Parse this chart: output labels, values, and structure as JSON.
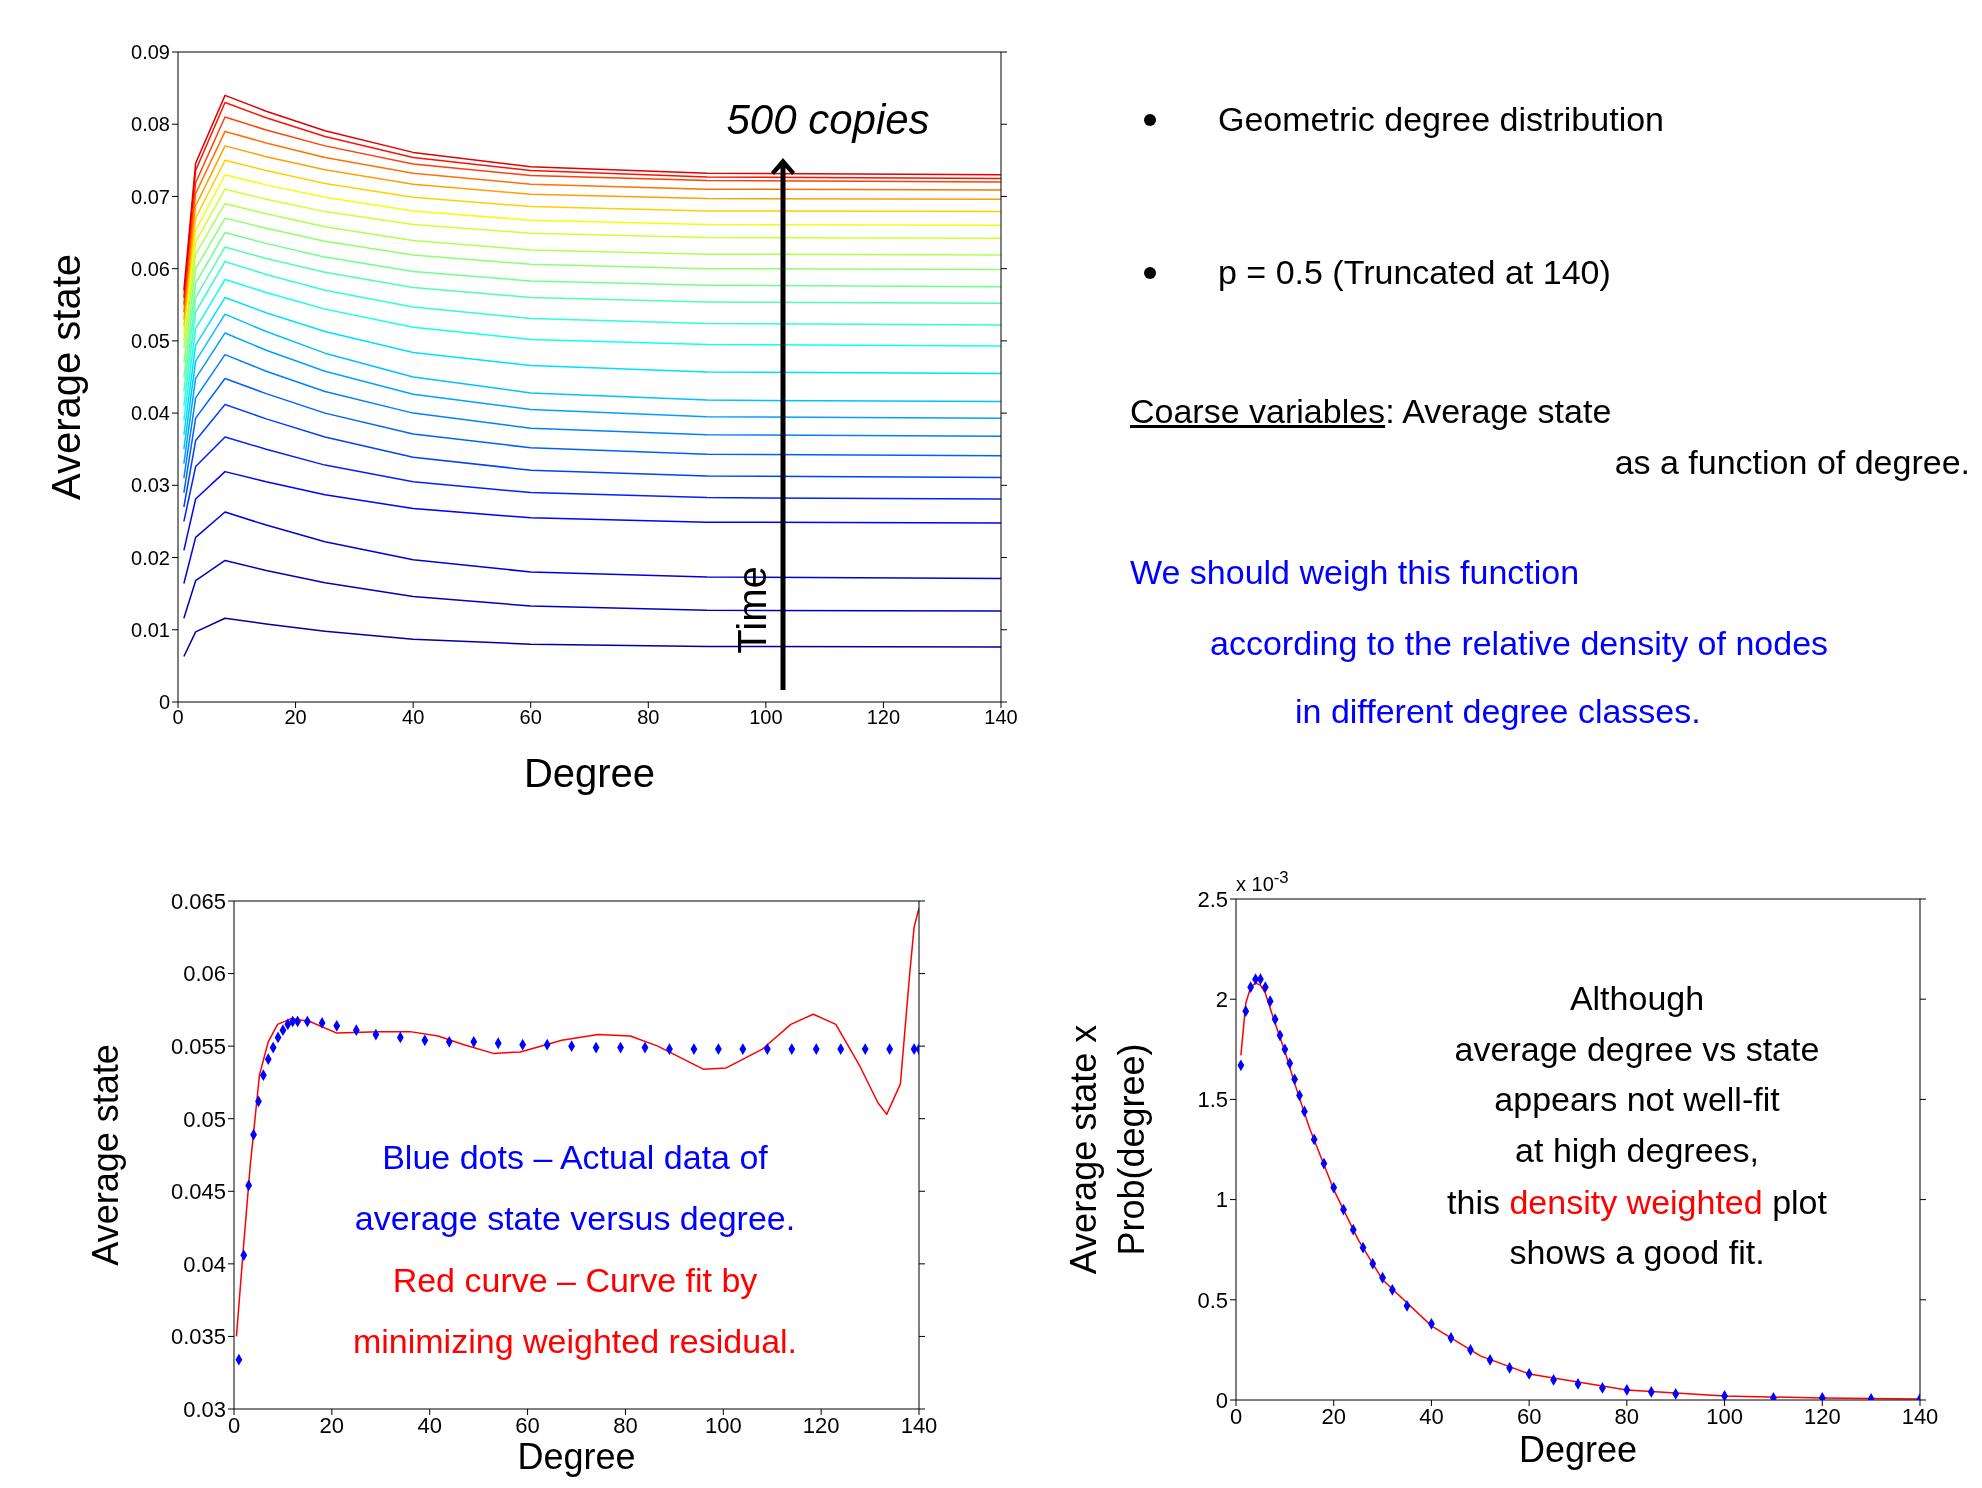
{
  "chart_data": [
    {
      "type": "line",
      "xlabel": "Degree",
      "ylabel": "Average state",
      "xlim": [
        0,
        140
      ],
      "xticks": [
        0,
        20,
        40,
        60,
        80,
        100,
        120,
        140
      ],
      "ylim": [
        0,
        0.09
      ],
      "yticks": [
        0,
        0.01,
        0.02,
        0.03,
        0.04,
        0.05,
        0.06,
        0.07,
        0.08,
        0.09
      ],
      "annotations": [
        "500 copies",
        "Time"
      ],
      "x": [
        1,
        3,
        8,
        15,
        25,
        40,
        60,
        90,
        140
      ],
      "series": [
        {
          "color": "#00009f",
          "values": [
            0.0063,
            0.0097,
            0.0116,
            0.0108,
            0.0098,
            0.0087,
            0.008,
            0.0077,
            0.0076
          ]
        },
        {
          "color": "#0000bf",
          "values": [
            0.0116,
            0.0168,
            0.0196,
            0.0182,
            0.0165,
            0.0146,
            0.0133,
            0.0127,
            0.0126
          ]
        },
        {
          "color": "#0000df",
          "values": [
            0.0164,
            0.0228,
            0.0263,
            0.0245,
            0.0222,
            0.0197,
            0.018,
            0.0173,
            0.0171
          ]
        },
        {
          "color": "#0000ff",
          "values": [
            0.021,
            0.0281,
            0.0319,
            0.0305,
            0.0287,
            0.0268,
            0.0255,
            0.0249,
            0.0248
          ]
        },
        {
          "color": "#0020ff",
          "values": [
            0.025,
            0.0326,
            0.0367,
            0.035,
            0.0328,
            0.0305,
            0.029,
            0.0283,
            0.0281
          ]
        },
        {
          "color": "#0040ff",
          "values": [
            0.027,
            0.0362,
            0.0412,
            0.0392,
            0.0367,
            0.0339,
            0.0321,
            0.0313,
            0.0311
          ]
        },
        {
          "color": "#0060ff",
          "values": [
            0.029,
            0.0393,
            0.0448,
            0.0427,
            0.04,
            0.0371,
            0.0352,
            0.0343,
            0.0341
          ]
        },
        {
          "color": "#0080ff",
          "values": [
            0.031,
            0.0421,
            0.0481,
            0.0458,
            0.043,
            0.04,
            0.0379,
            0.037,
            0.0368
          ]
        },
        {
          "color": "#00a0ff",
          "values": [
            0.033,
            0.0448,
            0.0511,
            0.0487,
            0.0458,
            0.0426,
            0.0405,
            0.0395,
            0.0393
          ]
        },
        {
          "color": "#00c0ff",
          "values": [
            0.035,
            0.0472,
            0.0537,
            0.0513,
            0.0483,
            0.045,
            0.0428,
            0.0418,
            0.0416
          ]
        },
        {
          "color": "#00e0ff",
          "values": [
            0.037,
            0.0494,
            0.056,
            0.0539,
            0.0513,
            0.0484,
            0.0466,
            0.0457,
            0.0455
          ]
        },
        {
          "color": "#10ffef",
          "values": [
            0.039,
            0.0517,
            0.0585,
            0.0567,
            0.0544,
            0.0519,
            0.0502,
            0.0495,
            0.0493
          ]
        },
        {
          "color": "#30ffcf",
          "values": [
            0.041,
            0.054,
            0.061,
            0.0592,
            0.057,
            0.0547,
            0.0531,
            0.0524,
            0.0522
          ]
        },
        {
          "color": "#50ffaf",
          "values": [
            0.043,
            0.056,
            0.063,
            0.0614,
            0.0595,
            0.0574,
            0.056,
            0.0554,
            0.0552
          ]
        },
        {
          "color": "#70ff8f",
          "values": [
            0.045,
            0.058,
            0.065,
            0.0635,
            0.0616,
            0.0596,
            0.0583,
            0.0577,
            0.0575
          ]
        },
        {
          "color": "#90ff6f",
          "values": [
            0.047,
            0.06,
            0.067,
            0.0656,
            0.0638,
            0.0619,
            0.0606,
            0.06,
            0.0599
          ]
        },
        {
          "color": "#b0ff4f",
          "values": [
            0.049,
            0.062,
            0.069,
            0.0676,
            0.0658,
            0.0639,
            0.0626,
            0.062,
            0.0619
          ]
        },
        {
          "color": "#d0ff2f",
          "values": [
            0.05,
            0.0637,
            0.071,
            0.0696,
            0.0679,
            0.0661,
            0.0649,
            0.0643,
            0.0642
          ]
        },
        {
          "color": "#f0ff0f",
          "values": [
            0.051,
            0.0653,
            0.073,
            0.0716,
            0.0699,
            0.068,
            0.0667,
            0.0661,
            0.066
          ]
        },
        {
          "color": "#ffd000",
          "values": [
            0.052,
            0.067,
            0.075,
            0.0736,
            0.0718,
            0.0699,
            0.0686,
            0.068,
            0.0679
          ]
        },
        {
          "color": "#ffa000",
          "values": [
            0.053,
            0.0687,
            0.077,
            0.0755,
            0.0737,
            0.0717,
            0.0703,
            0.0697,
            0.0696
          ]
        },
        {
          "color": "#ff7000",
          "values": [
            0.054,
            0.0704,
            0.079,
            0.0774,
            0.0754,
            0.0732,
            0.0717,
            0.071,
            0.0709
          ]
        },
        {
          "color": "#ff4000",
          "values": [
            0.055,
            0.0719,
            0.081,
            0.0792,
            0.077,
            0.0745,
            0.0729,
            0.0722,
            0.072
          ]
        },
        {
          "color": "#ff1000",
          "values": [
            0.056,
            0.0736,
            0.083,
            0.0809,
            0.0783,
            0.0754,
            0.0736,
            0.0727,
            0.0725
          ]
        },
        {
          "color": "#e00000",
          "values": [
            0.057,
            0.0746,
            0.084,
            0.0818,
            0.0791,
            0.0761,
            0.0741,
            0.0732,
            0.073
          ]
        }
      ]
    },
    {
      "type": "other",
      "annotations": [
        "Geometric degree distribution",
        "p = 0.5 (Truncated at 140)",
        "Coarse variables",
        ": Average state",
        "as a function of degree.",
        "We should weigh this function",
        "according to the relative density of nodes",
        "in different degree classes."
      ]
    },
    {
      "type": "scatter",
      "xlabel": "Degree",
      "ylabel": "Average state",
      "xlim": [
        0,
        140
      ],
      "xticks": [
        0,
        20,
        40,
        60,
        80,
        100,
        120,
        140
      ],
      "ylim": [
        0.03,
        0.065
      ],
      "yticks": [
        0.03,
        0.035,
        0.04,
        0.045,
        0.05,
        0.055,
        0.06,
        0.065
      ],
      "annotations": [
        "Blue dots – Actual data of",
        "average state versus degree.",
        "Red curve – Curve fit by",
        "minimizing weighted residual."
      ],
      "series": [
        {
          "type": "scatter",
          "marker": "diamond",
          "color": "#0000ff",
          "x": [
            1,
            2,
            3,
            4,
            5,
            6,
            7,
            8,
            9,
            10,
            11,
            12,
            13,
            15,
            18,
            21,
            25,
            29,
            34,
            39,
            44,
            49,
            54,
            59,
            64,
            69,
            74,
            79,
            84,
            89,
            94,
            99,
            104,
            109,
            114,
            119,
            124,
            129,
            134,
            139,
            140
          ],
          "values": [
            0.0334,
            0.0406,
            0.0454,
            0.0489,
            0.0512,
            0.053,
            0.0541,
            0.0549,
            0.0556,
            0.0561,
            0.0565,
            0.0567,
            0.0567,
            0.0567,
            0.0566,
            0.0564,
            0.0561,
            0.0558,
            0.0556,
            0.0554,
            0.0553,
            0.0553,
            0.0552,
            0.0551,
            0.0551,
            0.055,
            0.0549,
            0.0549,
            0.0549,
            0.0548,
            0.0548,
            0.0548,
            0.0548,
            0.0548,
            0.0548,
            0.0548,
            0.0548,
            0.0548,
            0.0548,
            0.0548,
            0.0548
          ]
        },
        {
          "type": "line",
          "color": "#ff0000",
          "x": [
            0.5,
            1.9,
            3.3,
            5.2,
            7,
            8.9,
            11.7,
            15.5,
            21,
            29.5,
            36,
            41.7,
            47,
            53,
            58.5,
            67,
            74.4,
            81,
            86.6,
            96,
            100.6,
            108,
            113.8,
            118.4,
            123,
            127.8,
            131.6,
            133.4,
            136.2,
            138.1,
            139,
            140
          ],
          "values": [
            0.035,
            0.041,
            0.0467,
            0.053,
            0.0553,
            0.0565,
            0.0569,
            0.0567,
            0.0559,
            0.056,
            0.056,
            0.0557,
            0.0551,
            0.0545,
            0.0546,
            0.0554,
            0.0558,
            0.0557,
            0.055,
            0.0534,
            0.0535,
            0.0548,
            0.0565,
            0.0572,
            0.0565,
            0.0537,
            0.0511,
            0.0503,
            0.0524,
            0.06,
            0.0632,
            0.0645
          ]
        }
      ]
    },
    {
      "type": "scatter",
      "xlabel": "Degree",
      "ylabel": "Average state x\nProb(degree)",
      "xlim": [
        0,
        140
      ],
      "xticks": [
        0,
        20,
        40,
        60,
        80,
        100,
        120,
        140
      ],
      "ylim": [
        0,
        2.5
      ],
      "yticks": [
        0,
        0.5,
        1,
        1.5,
        2,
        2.5
      ],
      "annotations": [
        "x 10$^{-3}$",
        "Although",
        "average degree vs state",
        "appears not well-fit",
        "at high degrees,",
        "this",
        "density weighted",
        "plot",
        "shows a good fit."
      ],
      "series": [
        {
          "type": "scatter",
          "marker": "diamond",
          "color": "#0000ff",
          "x": [
            1,
            2,
            3,
            4,
            5,
            6,
            7,
            8,
            9,
            10,
            11,
            12,
            13,
            14,
            16,
            18,
            20,
            22,
            24,
            26,
            28,
            30,
            32,
            35,
            40,
            44,
            48,
            52,
            56,
            60,
            65,
            70,
            75,
            80,
            85,
            90,
            100,
            110,
            120,
            130,
            140
          ],
          "values": [
            1.67,
            1.94,
            2.06,
            2.1,
            2.1,
            2.06,
            1.99,
            1.9,
            1.82,
            1.75,
            1.68,
            1.6,
            1.52,
            1.44,
            1.3,
            1.18,
            1.06,
            0.95,
            0.85,
            0.76,
            0.68,
            0.61,
            0.55,
            0.47,
            0.38,
            0.31,
            0.25,
            0.2,
            0.16,
            0.13,
            0.1,
            0.08,
            0.06,
            0.05,
            0.04,
            0.03,
            0.02,
            0.01,
            0.01,
            0.005,
            0.005
          ]
        },
        {
          "type": "line",
          "color": "#ff0000",
          "x": [
            1,
            2,
            3,
            4,
            5,
            6,
            8,
            10,
            12,
            15,
            20,
            25,
            30,
            40,
            50,
            60,
            80,
            100,
            120,
            140
          ],
          "values": [
            1.72,
            1.98,
            2.06,
            2.08,
            2.07,
            2.03,
            1.88,
            1.74,
            1.58,
            1.36,
            1.05,
            0.8,
            0.6,
            0.37,
            0.22,
            0.13,
            0.05,
            0.02,
            0.01,
            0.005
          ]
        }
      ]
    }
  ]
}
